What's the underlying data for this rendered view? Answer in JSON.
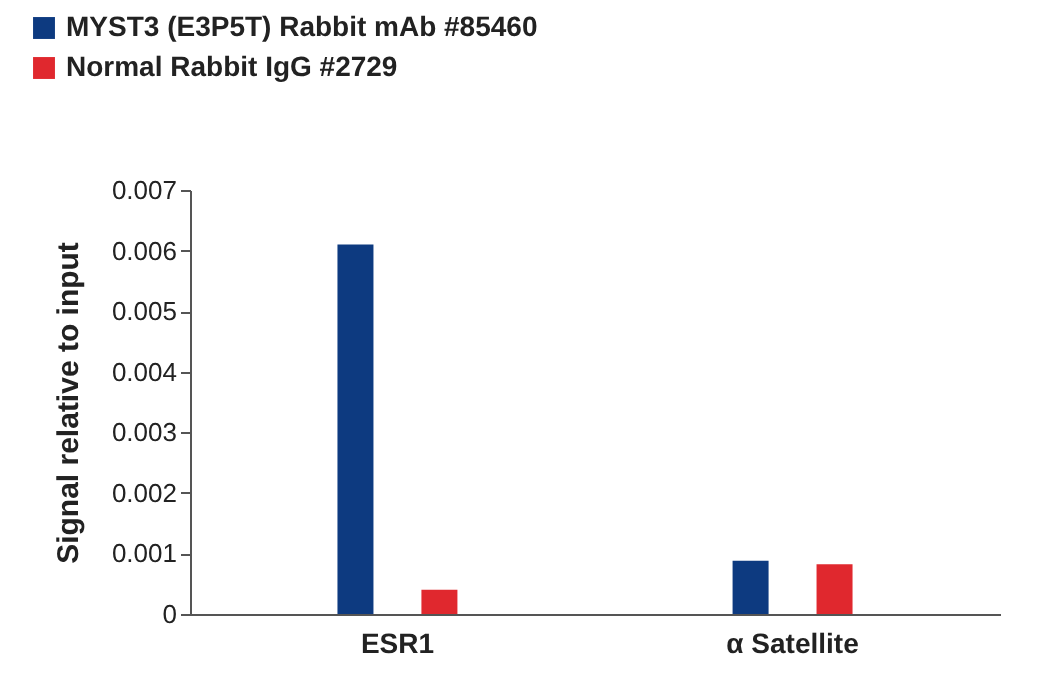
{
  "chart_data": {
    "type": "bar",
    "ylabel": "Signal relative to input",
    "categories": [
      "ESR1",
      "α Satellite"
    ],
    "series": [
      {
        "name": "MYST3 (E3P5T) Rabbit mAb #85460",
        "color": "#0d3a80",
        "values": [
          0.0061,
          0.00088
        ]
      },
      {
        "name": "Normal Rabbit IgG #2729",
        "color": "#e0282e",
        "values": [
          0.0004,
          0.00082
        ]
      }
    ],
    "ylim": [
      0,
      0.007
    ],
    "yticks": [
      0,
      0.001,
      0.002,
      0.003,
      0.004,
      0.005,
      0.006,
      0.007
    ],
    "grid": false,
    "legend": "top left"
  }
}
